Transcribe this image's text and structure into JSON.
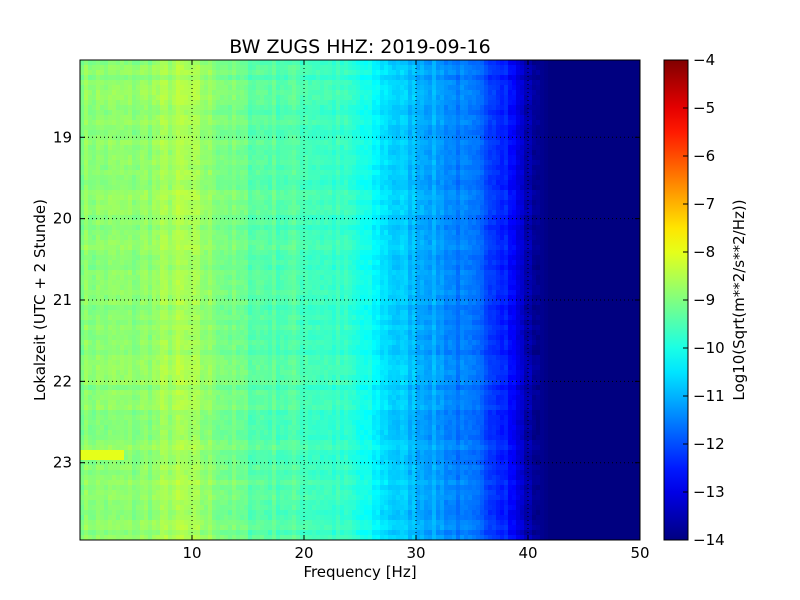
{
  "chart_data": {
    "type": "heatmap",
    "title": "BW ZUGS HHZ: 2019-09-16",
    "xlabel": "Frequency [Hz]",
    "ylabel": "Lokalzeit (UTC + 2 Stunde)",
    "xlim": [
      0,
      50
    ],
    "ylim": [
      18.05,
      23.95
    ],
    "y_inverted": true,
    "xticks": [
      10,
      20,
      30,
      40,
      50
    ],
    "yticks": [
      19,
      20,
      21,
      22,
      23
    ],
    "grid": true,
    "colormap": "jet",
    "colorbar": {
      "label": "Log10(Sqrt(m**2/s**2/Hz))",
      "range": [
        -14,
        -4
      ],
      "ticks": [
        -4,
        -5,
        -6,
        -7,
        -8,
        -9,
        -10,
        -11,
        -12,
        -13,
        -14
      ]
    },
    "spectrum_profile": {
      "frequency_hz": [
        0,
        5,
        9,
        12,
        15,
        20,
        24,
        28,
        32,
        36,
        38,
        40,
        42,
        50
      ],
      "log_amplitude": [
        -8.9,
        -8.9,
        -8.6,
        -8.9,
        -9.3,
        -9.5,
        -9.8,
        -10.7,
        -11.2,
        -11.9,
        -12.4,
        -13.6,
        -14.0,
        -14.0
      ]
    },
    "features": [
      {
        "text": "strong narrowband line near 0-4 Hz at about 22.9 h",
        "value": -8.0
      }
    ]
  }
}
